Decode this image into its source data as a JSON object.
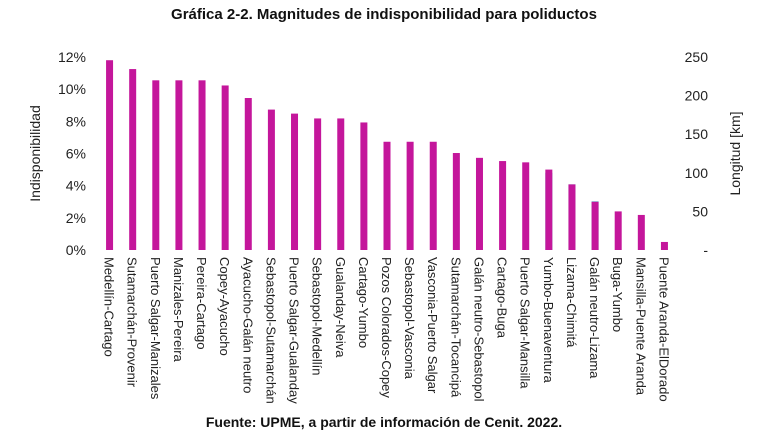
{
  "chart_data": {
    "type": "bar",
    "title": "Gráfica 2-2. Magnitudes de indisponibilidad para poliductos",
    "source": "Fuente: UPME, a partir de información de Cenit. 2022.",
    "ylabel_left": "Indisponibilidad",
    "ylabel_right": "Longitud [km]",
    "ylim_left": [
      0,
      0.12
    ],
    "ylim_right": [
      0,
      250
    ],
    "left_ticks": [
      "0%",
      "2%",
      "4%",
      "6%",
      "8%",
      "10%",
      "12%"
    ],
    "right_ticks": [
      "-",
      "50",
      "100",
      "150",
      "200",
      "250"
    ],
    "categories": [
      "Medellín-Cartago",
      "Sutamarchán-Provenir",
      "Puerto Salgar-Manizales",
      "Manizales-Pereira",
      "Pereira-Cartago",
      "Copey-Ayacucho",
      "Ayacucho-Galán neutro",
      "Sebastopol-Sutamarchán",
      "Puerto Salgar-Gualanday",
      "Sebastopol-Medellín",
      "Gualanday-Neiva",
      "Cartago-Yumbo",
      "Pozos Colorados-Copey",
      "Sebastopol-Vasconia",
      "Vasconia-Puerto Salgar",
      "Sutamarchán-Tocancipá",
      "Galán neutro-Sebastopol",
      "Cartago-Buga",
      "Puerto Salgar-Mansilla",
      "Yumbo-Buenaventura",
      "Lizama-Chimitá",
      "Galán neutro-Lizama",
      "Buga-Yumbo",
      "Mansilla-Puente Aranda",
      "Puente Aranda-ElDorado"
    ],
    "series": [
      {
        "axis": "left",
        "color": "#c4169b",
        "values": [
          0.118,
          0.1125,
          0.1055,
          0.1055,
          0.1055,
          0.1023,
          0.0945,
          0.0873,
          0.0848,
          0.0818,
          0.0818,
          0.0793,
          0.0673,
          0.0673,
          0.0673,
          0.0603,
          0.0573,
          0.0553,
          0.0545,
          0.05,
          0.0408,
          0.03,
          0.024,
          0.0218,
          0.005
        ]
      },
      {
        "axis": "right",
        "color": "#40b8c8",
        "values": [
          null,
          null,
          null,
          null,
          null,
          null,
          null,
          null,
          null,
          null,
          null,
          null,
          null,
          null,
          null,
          null,
          null,
          null,
          null,
          100,
          85,
          63,
          null,
          null,
          null
        ]
      }
    ],
    "grid": false,
    "legend": "none"
  }
}
